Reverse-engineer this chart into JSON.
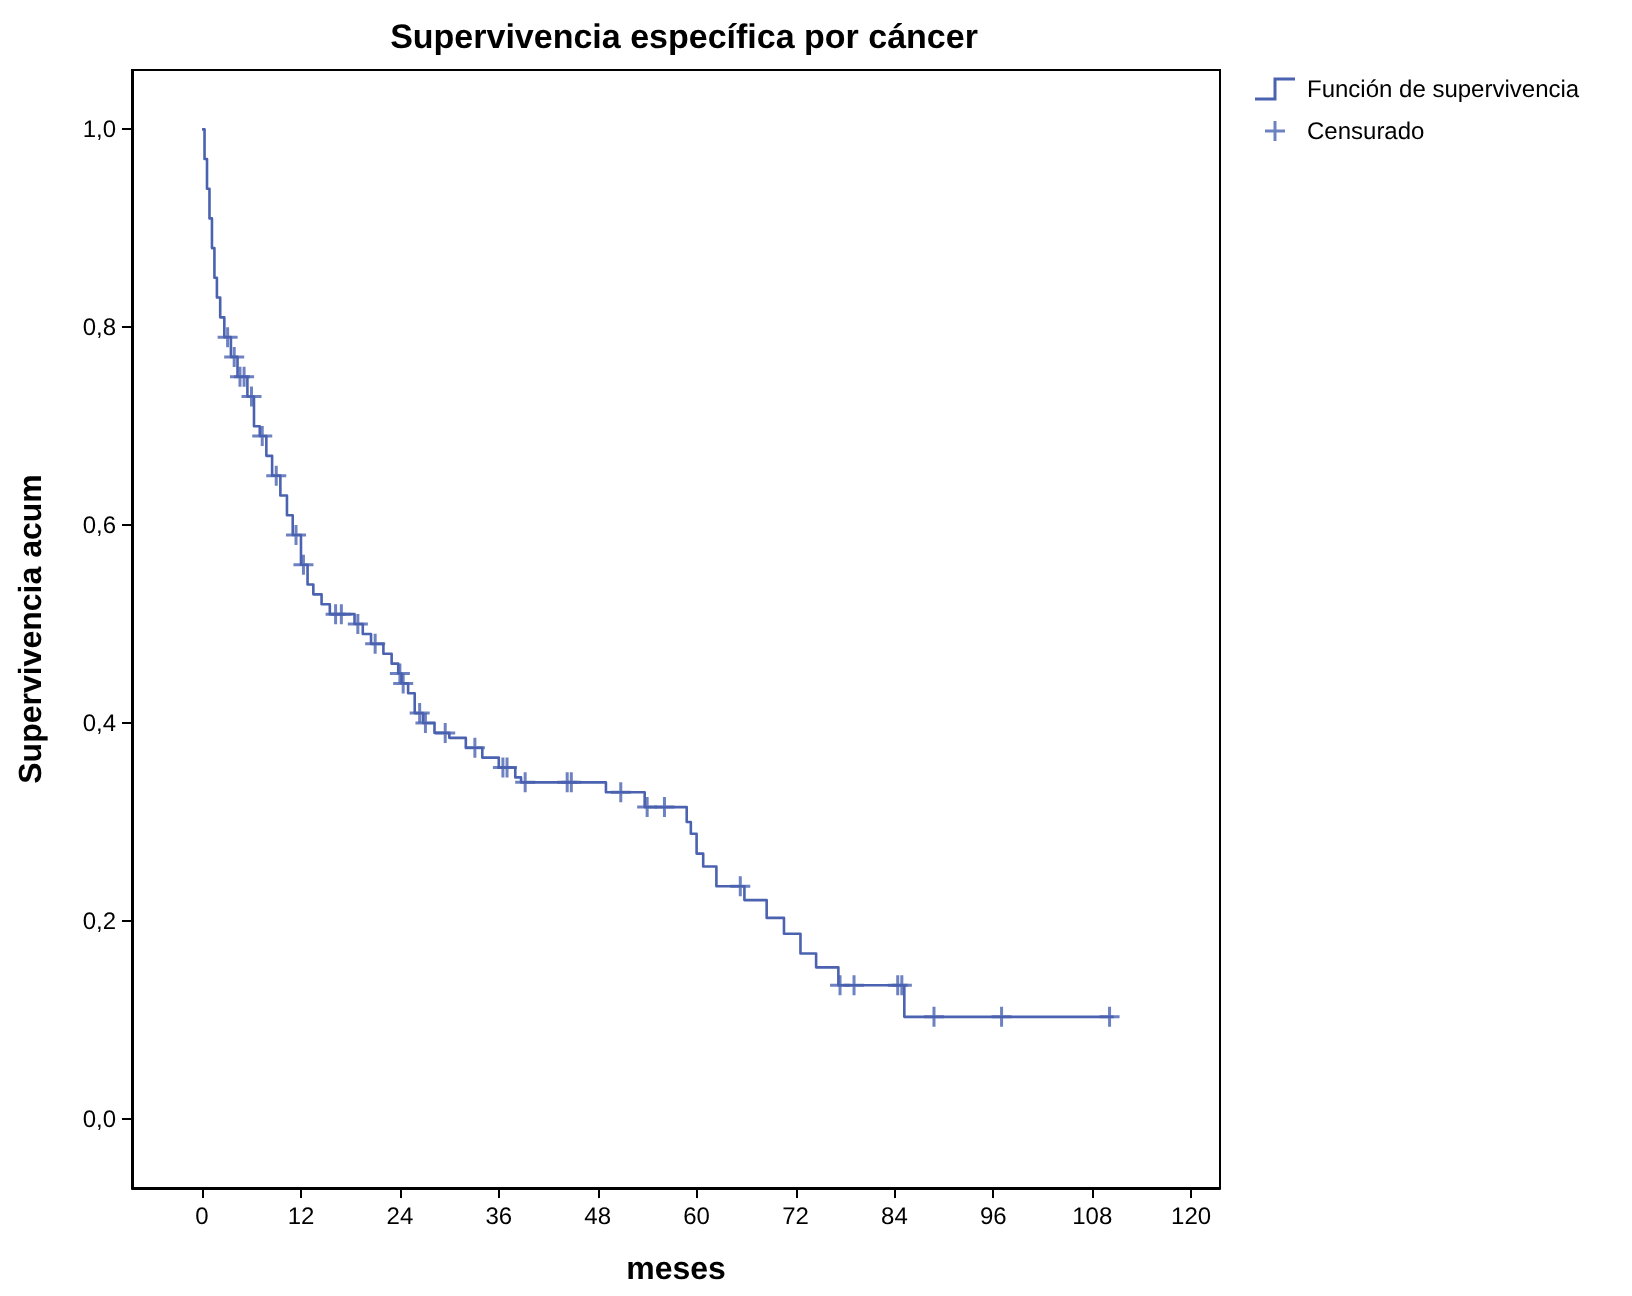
{
  "chart_data": {
    "type": "step",
    "title": "Supervivencia específica por cáncer",
    "xlabel": "meses",
    "ylabel": "Supervivencia acum",
    "xlim": [
      -8.5,
      123.5
    ],
    "xticks": [
      0,
      12,
      24,
      36,
      48,
      60,
      72,
      84,
      96,
      108,
      120
    ],
    "ylim": [
      -0.07,
      1.06
    ],
    "yticks": [
      {
        "value": 0,
        "label": "0,0"
      },
      {
        "value": 0.2,
        "label": "0,2"
      },
      {
        "value": 0.4,
        "label": "0,4"
      },
      {
        "value": 0.6,
        "label": "0,6"
      },
      {
        "value": 0.8,
        "label": "0,8"
      },
      {
        "value": 1,
        "label": "1,0"
      }
    ],
    "legend": "top right",
    "grid": false,
    "series": [
      {
        "name": "Función de supervivencia",
        "color": "#4a62b0",
        "marker": "none",
        "line_style": "solid",
        "x": [
          0,
          0.3,
          0.6,
          0.9,
          1.2,
          1.5,
          1.8,
          2.2,
          2.7,
          3.5,
          4.3,
          5.5,
          6.3,
          7,
          7.8,
          8.5,
          9.5,
          10.3,
          11,
          12,
          12.8,
          13.5,
          14.5,
          15.5,
          18.5,
          19.5,
          20.5,
          22,
          23,
          23.8,
          24.2,
          25,
          25.8,
          26.8,
          28.2,
          30,
          32,
          34,
          36,
          38,
          38.7,
          49,
          53.7,
          58.8,
          59.3,
          60,
          60.8,
          62.4,
          65.8,
          68.5,
          70.6,
          72.6,
          74.5,
          77.2,
          85.2,
          110.6
        ],
        "values": [
          1.0,
          0.97,
          0.94,
          0.91,
          0.88,
          0.85,
          0.83,
          0.81,
          0.79,
          0.77,
          0.75,
          0.73,
          0.7,
          0.69,
          0.67,
          0.65,
          0.63,
          0.61,
          0.59,
          0.56,
          0.54,
          0.53,
          0.52,
          0.51,
          0.5,
          0.49,
          0.48,
          0.47,
          0.46,
          0.45,
          0.44,
          0.43,
          0.41,
          0.4,
          0.39,
          0.385,
          0.375,
          0.365,
          0.355,
          0.345,
          0.34,
          0.33,
          0.315,
          0.3,
          0.288,
          0.268,
          0.255,
          0.235,
          0.221,
          0.203,
          0.187,
          0.167,
          0.153,
          0.135,
          0.103,
          0.103
        ]
      },
      {
        "name": "Censurado",
        "type": "scatter",
        "color": "#4a62b0",
        "marker": "cross",
        "x": [
          3.1,
          3.9,
          4.6,
          5.1,
          6.0,
          7.3,
          9.0,
          11.4,
          12.3,
          16.2,
          16.9,
          18.9,
          21.0,
          24.0,
          24.4,
          26.4,
          27.1,
          29.5,
          33.1,
          36.5,
          37.0,
          39.2,
          44.3,
          44.8,
          50.8,
          54,
          56.1,
          65.3,
          77.4,
          79.1,
          84.4,
          84.9,
          88.8,
          97,
          110.1
        ],
        "values": [
          0.79,
          0.77,
          0.75,
          0.75,
          0.73,
          0.69,
          0.65,
          0.59,
          0.56,
          0.51,
          0.51,
          0.5,
          0.48,
          0.45,
          0.44,
          0.41,
          0.4,
          0.39,
          0.375,
          0.355,
          0.355,
          0.34,
          0.34,
          0.34,
          0.33,
          0.315,
          0.315,
          0.235,
          0.135,
          0.135,
          0.135,
          0.135,
          0.103,
          0.103,
          0.103
        ]
      }
    ]
  }
}
